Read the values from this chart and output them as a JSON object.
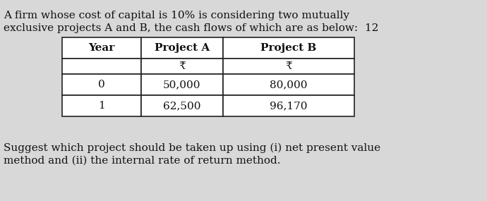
{
  "bg_color": "#d8d8d8",
  "text_color": "#111111",
  "intro_line1": "A firm whose cost of capital is 10% is considering two mutually",
  "intro_line2": "exclusive projects A and B, the cash flows of which are as below:  12",
  "col_headers": [
    "Year",
    "Project A",
    "Project B"
  ],
  "sub_header": [
    "",
    "₹",
    "₹"
  ],
  "rows": [
    [
      "0",
      "50,000",
      "80,000"
    ],
    [
      "1",
      "62,500",
      "96,170"
    ]
  ],
  "footer_line1": "Suggest which project should be taken up using (i) net present value",
  "footer_line2": "method and (ii) the internal rate of return method.",
  "font_size": 11.0,
  "table_font_size": 11.0
}
